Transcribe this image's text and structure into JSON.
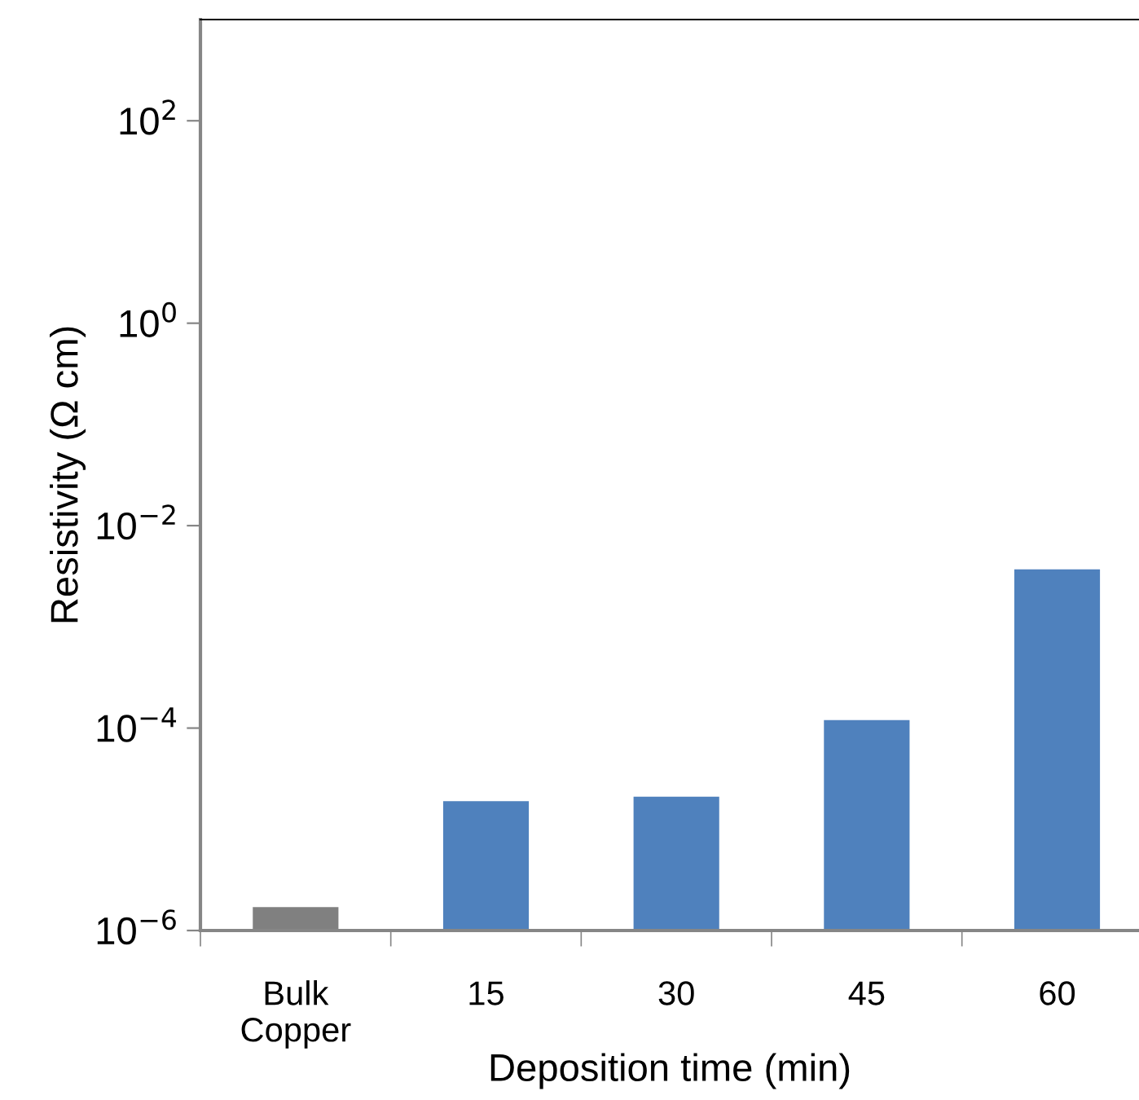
{
  "chart_data": {
    "type": "bar",
    "xlabel": "Deposition time (min)",
    "ylabel": "Resistivity (Ω cm)",
    "categories": [
      "Bulk\nCopper",
      "15",
      "30",
      "45",
      "60"
    ],
    "values": [
      1.7e-06,
      1.9e-05,
      2.1e-05,
      0.00012,
      0.0037
    ],
    "colors": [
      "#808080",
      "#4f81bd",
      "#4f81bd",
      "#4f81bd",
      "#4f81bd"
    ],
    "log": "y",
    "ylim": [
      1e-06,
      1000
    ],
    "yticks": [
      {
        "value": 1e-06,
        "label": "10$^{−6}$"
      },
      {
        "value": 0.0001,
        "label": "10$^{−4}$"
      },
      {
        "value": 0.01,
        "label": "10$^{−2}$"
      },
      {
        "value": 1,
        "label": "10$^{0}$"
      },
      {
        "value": 100,
        "label": "10$^{2}$"
      }
    ],
    "grid": false,
    "legend": false
  }
}
